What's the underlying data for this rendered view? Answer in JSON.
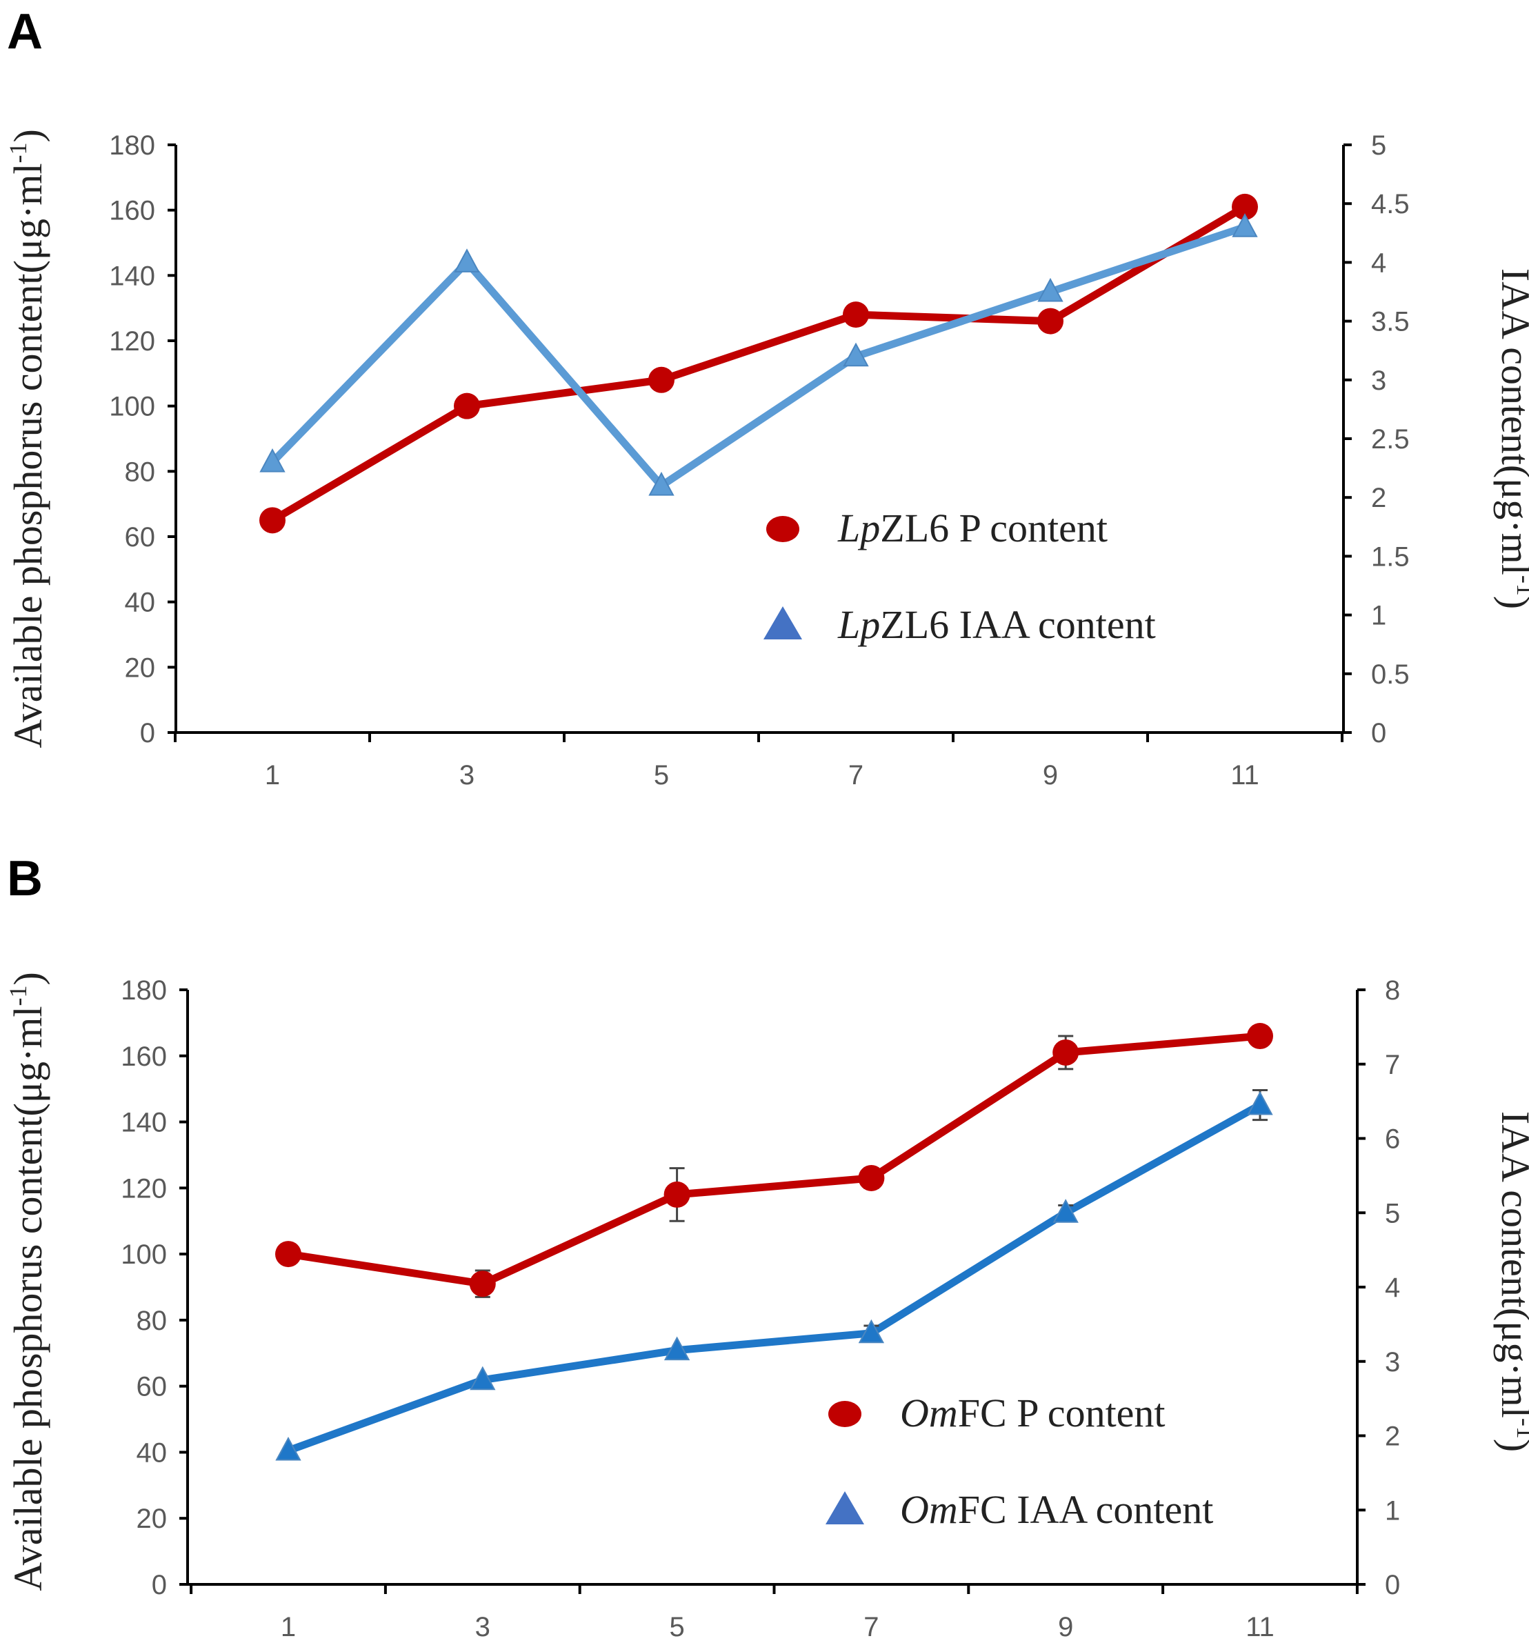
{
  "chart_data": [
    {
      "panel": "A",
      "type": "line",
      "x": [
        1,
        3,
        5,
        7,
        9,
        11
      ],
      "x_ticks": [
        "1",
        "3",
        "5",
        "7",
        "9",
        "11"
      ],
      "y_left": {
        "label_main": "Available phosphorus content(μg·ml",
        "label_sup": "-1",
        "label_close": ")",
        "range": [
          0,
          180
        ],
        "ticks": [
          "0",
          "20",
          "40",
          "60",
          "80",
          "100",
          "120",
          "140",
          "160",
          "180"
        ]
      },
      "y_right": {
        "label_main": "IAA content(μg·ml",
        "label_sup": "-1",
        "label_close": ")",
        "range": [
          0,
          5
        ],
        "ticks": [
          "0",
          "0.5",
          "1",
          "1.5",
          "2",
          "2.5",
          "3",
          "3.5",
          "4",
          "4.5",
          "5"
        ]
      },
      "series": [
        {
          "name_italic": "Lp",
          "name_rest": "ZL6 P content",
          "axis": "left",
          "marker": "circle",
          "color": "#c00000",
          "values": [
            65,
            100,
            108,
            128,
            126,
            161
          ],
          "errors": [
            0,
            0,
            0,
            0,
            0,
            0
          ]
        },
        {
          "name_italic": "Lp",
          "name_rest": "ZL6 IAA content",
          "axis": "right",
          "marker": "triangle",
          "color": "#5b9bd5",
          "values": [
            2.3,
            4.0,
            2.1,
            3.2,
            3.75,
            4.3
          ],
          "errors": [
            0,
            0,
            0,
            0,
            0,
            0
          ]
        }
      ]
    },
    {
      "panel": "B",
      "type": "line",
      "x": [
        1,
        3,
        5,
        7,
        9,
        11
      ],
      "x_ticks": [
        "1",
        "3",
        "5",
        "7",
        "9",
        "11"
      ],
      "y_left": {
        "label_main": "Available phosphorus content(μg·ml",
        "label_sup": "-1",
        "label_close": ")",
        "range": [
          0,
          180
        ],
        "ticks": [
          "0",
          "20",
          "40",
          "60",
          "80",
          "100",
          "120",
          "140",
          "160",
          "180"
        ]
      },
      "y_right": {
        "label_main": "IAA content(μg·ml",
        "label_sup": "-1",
        "label_close": ")",
        "range": [
          0,
          8
        ],
        "ticks": [
          "0",
          "1",
          "2",
          "3",
          "4",
          "5",
          "6",
          "7",
          "8"
        ]
      },
      "series": [
        {
          "name_italic": "Om",
          "name_rest": "FC P content",
          "axis": "left",
          "marker": "circle",
          "color": "#c00000",
          "values": [
            100,
            91,
            118,
            123,
            161,
            166
          ],
          "errors": [
            0,
            4,
            8,
            3,
            5,
            0
          ]
        },
        {
          "name_italic": "Om",
          "name_rest": "FC IAA content",
          "axis": "right",
          "marker": "triangle",
          "color": "#1f77c8",
          "values": [
            1.8,
            2.75,
            3.15,
            3.38,
            5.0,
            6.45
          ],
          "errors": [
            0,
            0,
            0,
            0.1,
            0.1,
            0.2
          ]
        }
      ]
    }
  ]
}
